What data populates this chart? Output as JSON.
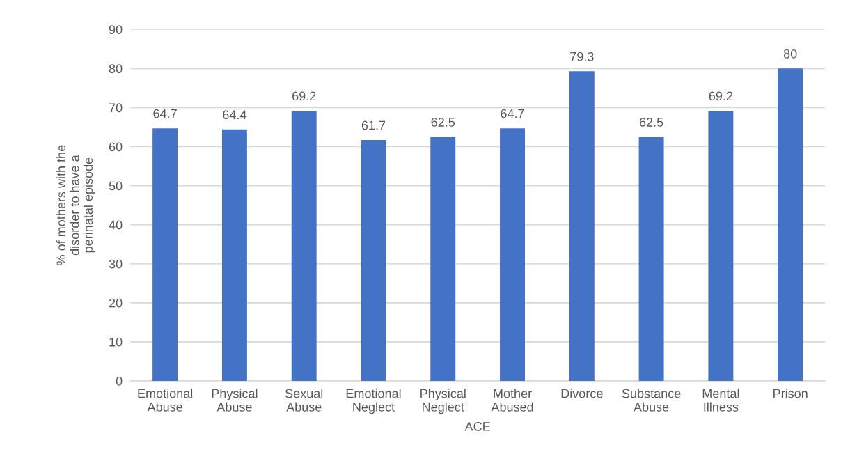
{
  "chart_data": {
    "type": "bar",
    "categories": [
      "Emotional\nAbuse",
      "Physical\nAbuse",
      "Sexual\nAbuse",
      "Emotional\nNeglect",
      "Physical\nNeglect",
      "Mother\nAbused",
      "Divorce",
      "Substance\nAbuse",
      "Mental\nIllness",
      "Prison"
    ],
    "values": [
      64.7,
      64.4,
      69.2,
      61.7,
      62.5,
      64.7,
      79.3,
      62.5,
      69.2,
      80
    ],
    "color": "#4472c4",
    "xlabel": "ACE",
    "ylabel": "% of mothers with the\ndisorder to have a\nperinatal episode",
    "ylim": [
      0,
      90
    ],
    "yticks": [
      0,
      10,
      20,
      30,
      40,
      50,
      60,
      70,
      80,
      90
    ],
    "grid": "y",
    "data_labels": true
  }
}
